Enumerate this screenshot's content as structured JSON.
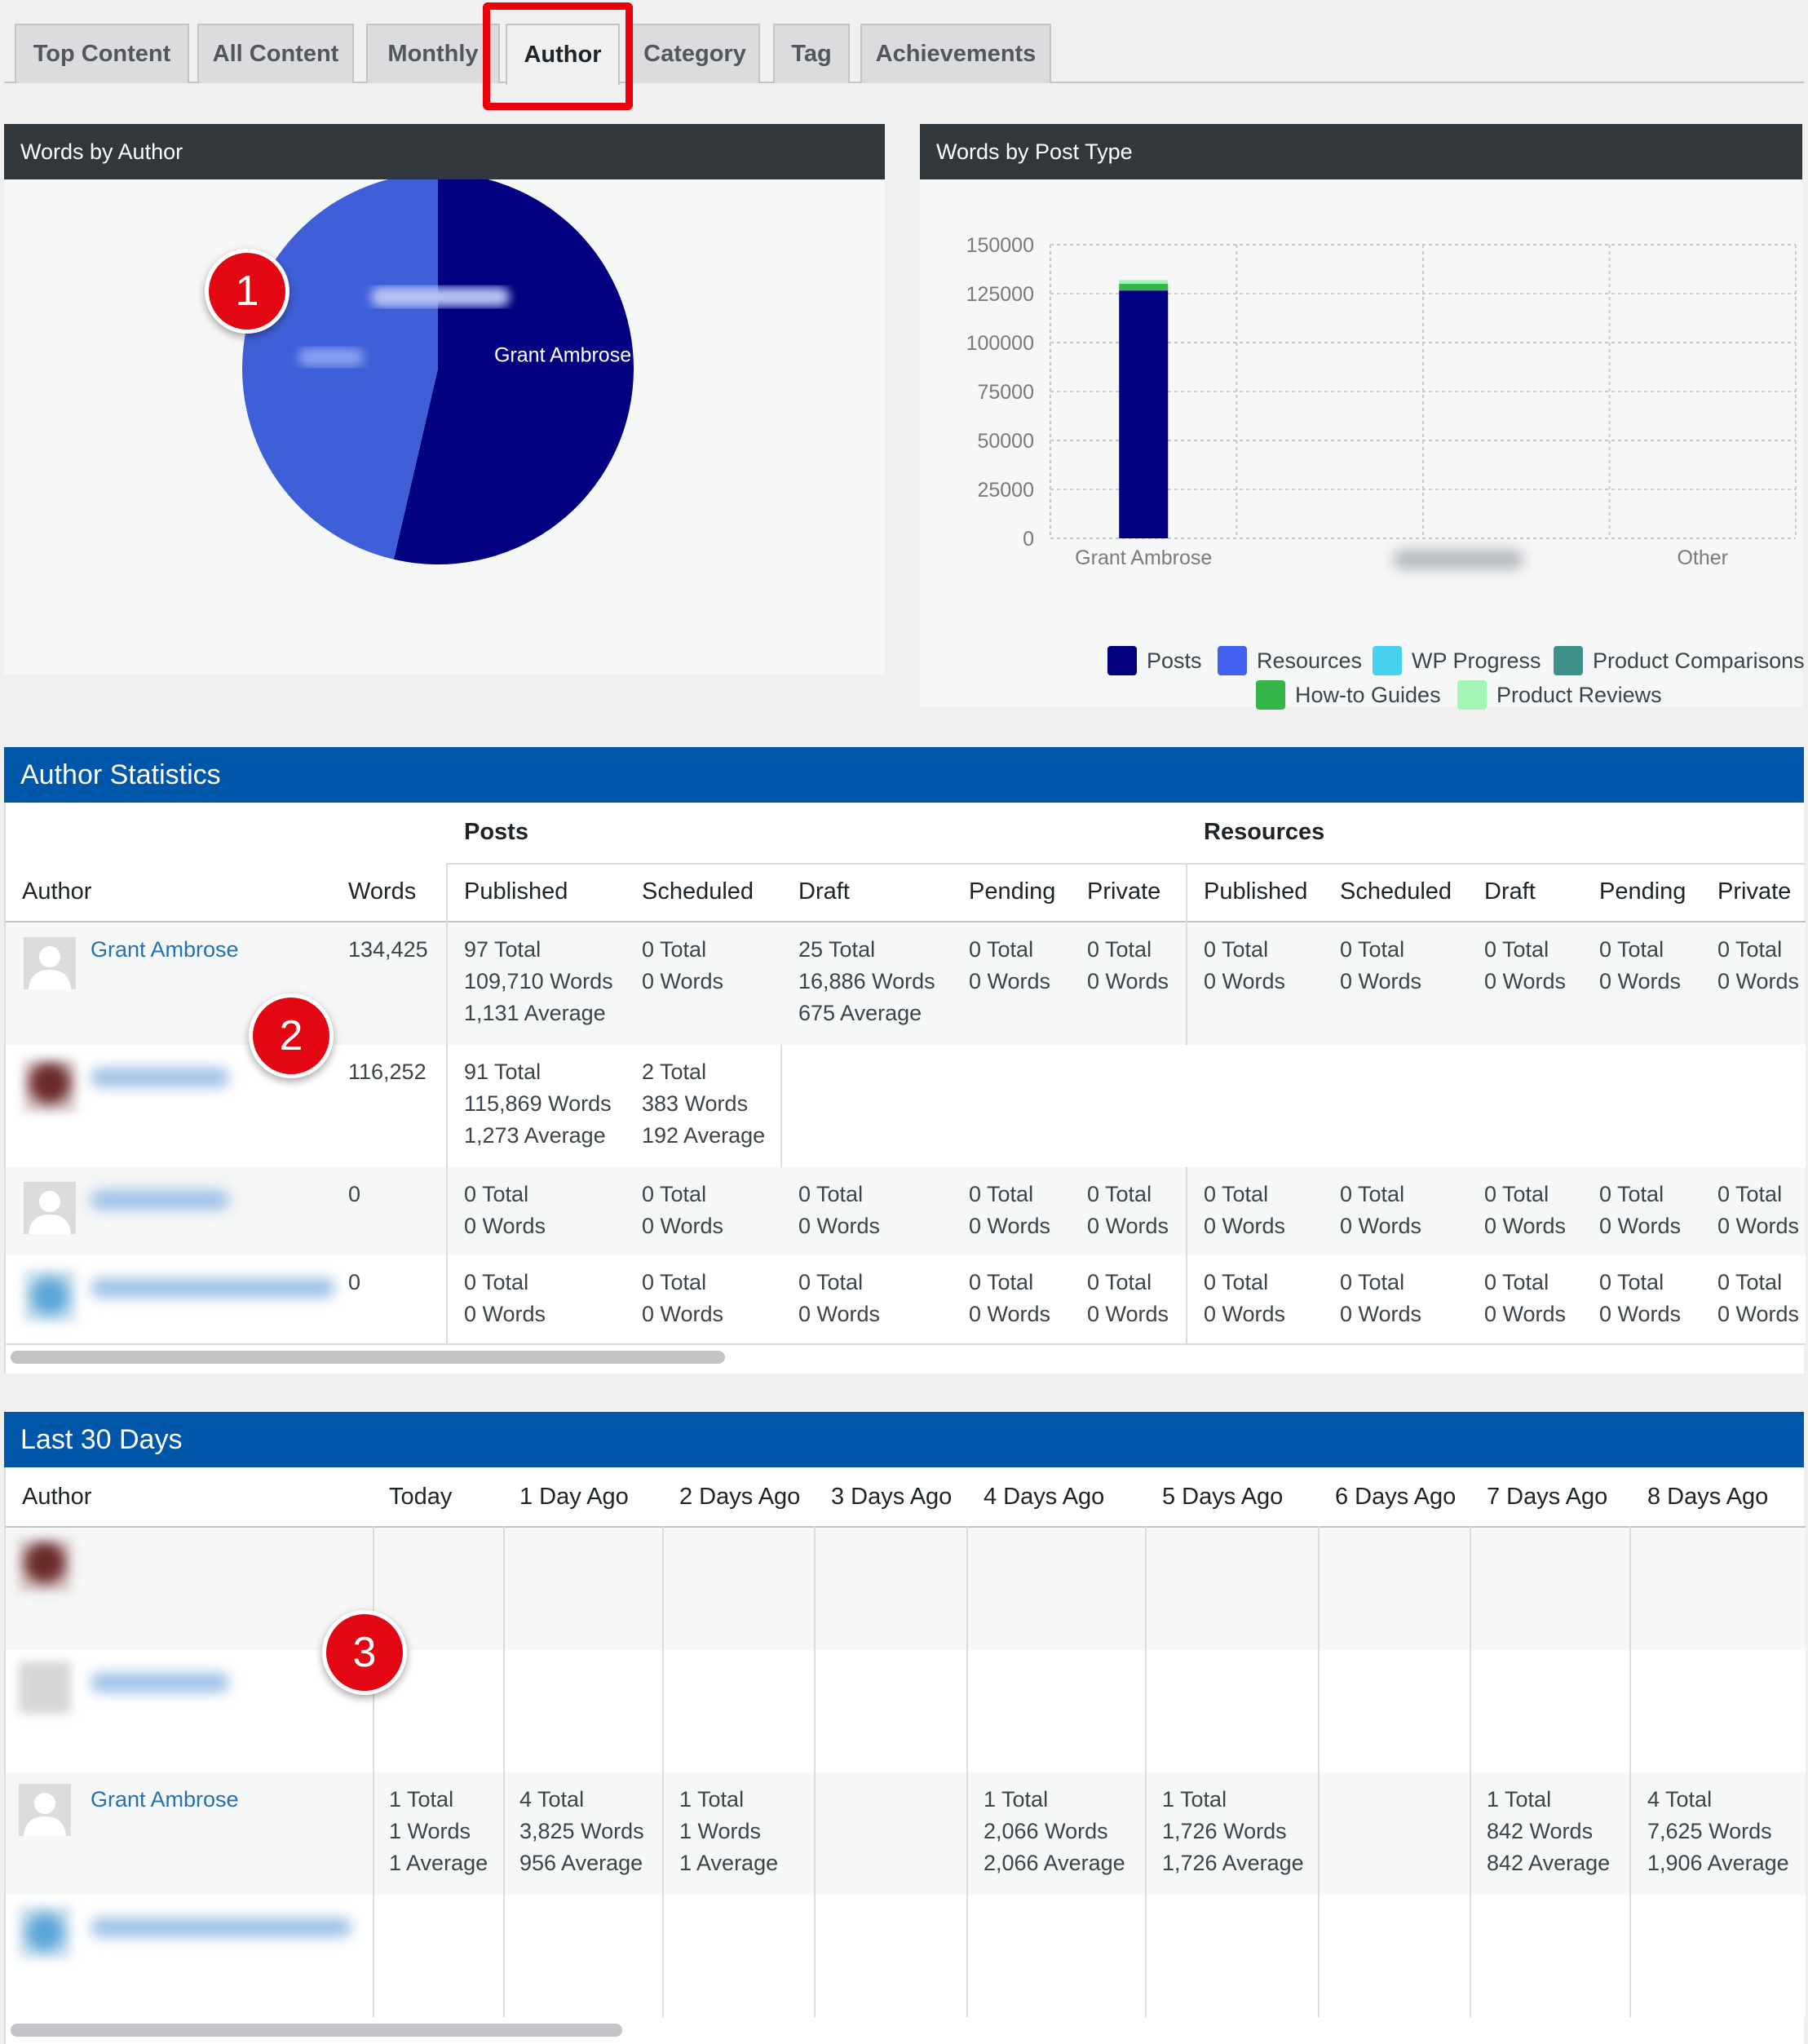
{
  "tabs": [
    "Top Content",
    "All Content",
    "Monthly",
    "Author",
    "Category",
    "Tag",
    "Achievements"
  ],
  "active_tab": "Author",
  "panels": {
    "pie_title": "Words by Author",
    "bar_title": "Words by Post Type"
  },
  "chart_data": [
    {
      "type": "pie",
      "title": "Words by Author",
      "slices": [
        {
          "label": "Grant Ambrose",
          "value": 134425,
          "color": "#000080"
        },
        {
          "label": "",
          "value": 116252,
          "color": "#3f5fd8"
        }
      ]
    },
    {
      "type": "bar",
      "title": "Words by Post Type",
      "categories": [
        "Grant Ambrose",
        "",
        "Other"
      ],
      "ylim": [
        0,
        150000
      ],
      "yticks": [
        "150000",
        "125000",
        "100000",
        "75000",
        "50000",
        "25000",
        "0"
      ],
      "series": [
        {
          "name": "Posts",
          "color": "#000080",
          "values": [
            126596,
            0,
            0
          ]
        },
        {
          "name": "Resources",
          "color": "#4361ee",
          "values": [
            0,
            0,
            0
          ]
        },
        {
          "name": "WP Progress",
          "color": "#47d1f0",
          "values": [
            0,
            0,
            0
          ]
        },
        {
          "name": "Product Comparisons",
          "color": "#3d9087",
          "values": [
            0,
            0,
            0
          ]
        },
        {
          "name": "How-to Guides",
          "color": "#36b54a",
          "values": [
            3500,
            0,
            0
          ]
        },
        {
          "name": "Product Reviews",
          "color": "#a3f5b6",
          "values": [
            1800,
            0,
            0
          ]
        }
      ],
      "legend_position": "bottom",
      "grid": true
    }
  ],
  "author_stats": {
    "title": "Author Statistics",
    "group_posts": "Posts",
    "group_resources": "Resources",
    "headers": [
      "Author",
      "Words",
      "Published",
      "Scheduled",
      "Draft",
      "Pending",
      "Private",
      "Published",
      "Scheduled",
      "Draft",
      "Pending",
      "Private"
    ],
    "rows": [
      {
        "author": "Grant Ambrose",
        "words": "134,425",
        "cells": [
          "97 Total\n109,710 Words\n1,131 Average",
          "0 Total\n0 Words",
          "25 Total\n16,886 Words\n675 Average",
          "0 Total\n0 Words",
          "0 Total\n0 Words",
          "0 Total\n0 Words",
          "0 Total\n0 Words",
          "0 Total\n0 Words",
          "0 Total\n0 Words",
          "0 Total\n0 Words"
        ]
      },
      {
        "author": "",
        "words": "116,252",
        "cells": [
          "91 Total\n115,869 Words\n1,273 Average",
          "2 Total\n383 Words\n192 Average",
          "",
          "",
          "",
          "",
          "",
          "",
          "",
          ""
        ]
      },
      {
        "author": "",
        "words": "0",
        "cells": [
          "0 Total\n0 Words",
          "0 Total\n0 Words",
          "0 Total\n0 Words",
          "0 Total\n0 Words",
          "0 Total\n0 Words",
          "0 Total\n0 Words",
          "0 Total\n0 Words",
          "0 Total\n0 Words",
          "0 Total\n0 Words",
          "0 Total\n0 Words"
        ]
      },
      {
        "author": "",
        "words": "0",
        "cells": [
          "0 Total\n0 Words",
          "0 Total\n0 Words",
          "0 Total\n0 Words",
          "0 Total\n0 Words",
          "0 Total\n0 Words",
          "0 Total\n0 Words",
          "0 Total\n0 Words",
          "0 Total\n0 Words",
          "0 Total\n0 Words",
          "0 Total\n0 Words"
        ]
      }
    ]
  },
  "last30": {
    "title": "Last 30 Days",
    "headers": [
      "Author",
      "Today",
      "1 Day Ago",
      "2 Days Ago",
      "3 Days Ago",
      "4 Days Ago",
      "5 Days Ago",
      "6 Days Ago",
      "7 Days Ago",
      "8 Days Ago"
    ],
    "rows": [
      {
        "author": "",
        "cells": [
          "",
          "",
          "",
          "",
          "",
          "",
          "",
          "",
          ""
        ]
      },
      {
        "author": "",
        "cells": [
          "",
          "",
          "",
          "",
          "",
          "",
          "",
          "",
          ""
        ]
      },
      {
        "author": "Grant Ambrose",
        "cells": [
          "1 Total\n1 Words\n1 Average",
          "4 Total\n3,825 Words\n956 Average",
          "1 Total\n1 Words\n1 Average",
          "",
          "1 Total\n2,066 Words\n2,066 Average",
          "1 Total\n1,726 Words\n1,726 Average",
          "",
          "1 Total\n842 Words\n842 Average",
          "4 Total\n7,625 Words\n1,906 Average"
        ]
      },
      {
        "author": "",
        "cells": [
          "",
          "",
          "",
          "",
          "",
          "",
          "",
          "",
          ""
        ]
      }
    ]
  },
  "badges": [
    "1",
    "2",
    "3"
  ],
  "colors": {
    "accent_blue": "#0056a8",
    "dark_header": "#32373c",
    "highlight_red": "#e8000b",
    "badge_red": "#e30613",
    "link": "#2271b1"
  },
  "icons": [
    "person-avatar-icon"
  ]
}
